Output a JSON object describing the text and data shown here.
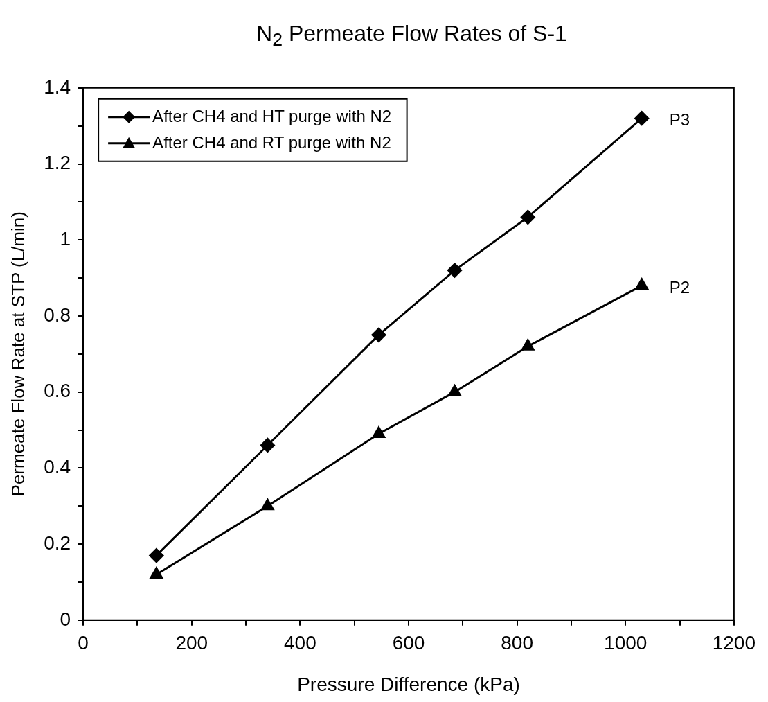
{
  "chart_data": {
    "type": "line",
    "title": "N$_{2}$ Permeate Flow Rates of S-1",
    "xlabel": "Pressure Difference (kPa)",
    "ylabel": "Permeate Flow Rate at STP (L/min)",
    "x": [
      135,
      340,
      545,
      685,
      820,
      1030
    ],
    "series": [
      {
        "name": "After CH4 and HT purge with N2",
        "color": "#000000",
        "marker": "diamond",
        "values": [
          0.17,
          0.46,
          0.75,
          0.92,
          1.06,
          1.32
        ]
      },
      {
        "name": "After CH4 and RT purge with N2",
        "color": "#000000",
        "marker": "triangle",
        "values": [
          0.12,
          0.3,
          0.49,
          0.6,
          0.72,
          0.88
        ]
      }
    ],
    "xlim": [
      0,
      1200
    ],
    "xticks": [
      0,
      {
        "value": 100,
        "label": null
      },
      200,
      {
        "value": 300,
        "label": null
      },
      400,
      {
        "value": 500,
        "label": null
      },
      600,
      {
        "value": 700,
        "label": null
      },
      800,
      {
        "value": 900,
        "label": null
      },
      1000,
      {
        "value": 1100,
        "label": null
      },
      1200
    ],
    "ylim": [
      0,
      1.4
    ],
    "yticks": [
      0,
      {
        "value": 0.1,
        "label": null
      },
      0.2,
      {
        "value": 0.3,
        "label": null
      },
      0.4,
      {
        "value": 0.5,
        "label": null
      },
      0.6,
      {
        "value": 0.7,
        "label": null
      },
      0.8,
      {
        "value": 0.9,
        "label": null
      },
      1,
      {
        "value": 1.1,
        "label": null
      },
      1.2,
      {
        "value": 1.3,
        "label": null
      },
      1.4
    ],
    "annotations": [
      {
        "text": "P3",
        "x": 1030,
        "y": 1.32
      },
      {
        "text": "P2",
        "x": 1030,
        "y": 0.88
      }
    ],
    "legend": "top left",
    "grid": false,
    "line_style": "solid"
  }
}
